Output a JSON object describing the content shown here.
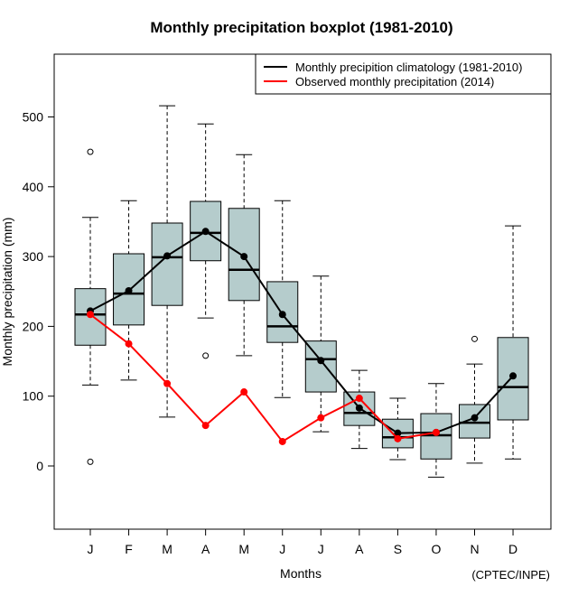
{
  "chart_data": {
    "type": "boxplot",
    "title": "Monthly precipitation boxplot (1981-2010)",
    "xlabel": "Months",
    "ylabel": "Monthly precipitation (mm)",
    "credit": "(CPTEC/INPE)",
    "ylim": [
      -90,
      590
    ],
    "yticks": [
      0,
      100,
      200,
      300,
      400,
      500
    ],
    "ytick_labels": [
      "0",
      "100",
      "200",
      "300",
      "400",
      "500"
    ],
    "categories": [
      "J",
      "F",
      "M",
      "A",
      "M",
      "J",
      "J",
      "A",
      "S",
      "O",
      "N",
      "D"
    ],
    "grid": false,
    "legend_position": "top-right",
    "legend": [
      {
        "label": "Monthly precipition climatology (1981-2010)",
        "color": "#000000"
      },
      {
        "label": "Observed monthly precipitation (2014)",
        "color": "#ff0000"
      }
    ],
    "box_fill": "#b5cccc",
    "boxes": [
      {
        "month": "J",
        "whisker_low": 116,
        "q1": 173,
        "median": 217,
        "q3": 254,
        "whisker_high": 356,
        "outliers": [
          450,
          6
        ]
      },
      {
        "month": "F",
        "whisker_low": 123,
        "q1": 202,
        "median": 247,
        "q3": 304,
        "whisker_high": 380,
        "outliers": []
      },
      {
        "month": "M",
        "whisker_low": 70,
        "q1": 230,
        "median": 299,
        "q3": 348,
        "whisker_high": 516,
        "outliers": []
      },
      {
        "month": "A",
        "whisker_low": 212,
        "q1": 294,
        "median": 334,
        "q3": 379,
        "whisker_high": 490,
        "outliers": [
          158
        ]
      },
      {
        "month": "M",
        "whisker_low": 158,
        "q1": 237,
        "median": 281,
        "q3": 369,
        "whisker_high": 446,
        "outliers": []
      },
      {
        "month": "J",
        "whisker_low": 98,
        "q1": 177,
        "median": 200,
        "q3": 264,
        "whisker_high": 380,
        "outliers": []
      },
      {
        "month": "J",
        "whisker_low": 49,
        "q1": 106,
        "median": 153,
        "q3": 179,
        "whisker_high": 272,
        "outliers": []
      },
      {
        "month": "A",
        "whisker_low": 25,
        "q1": 58,
        "median": 76,
        "q3": 106,
        "whisker_high": 137,
        "outliers": []
      },
      {
        "month": "S",
        "whisker_low": 9,
        "q1": 26,
        "median": 41,
        "q3": 67,
        "whisker_high": 97,
        "outliers": []
      },
      {
        "month": "O",
        "whisker_low": -16,
        "q1": 10,
        "median": 44,
        "q3": 75,
        "whisker_high": 118,
        "outliers": []
      },
      {
        "month": "N",
        "whisker_low": 4,
        "q1": 40,
        "median": 62,
        "q3": 88,
        "whisker_high": 146,
        "outliers": [
          182
        ]
      },
      {
        "month": "D",
        "whisker_low": 10,
        "q1": 66,
        "median": 113,
        "q3": 184,
        "whisker_high": 344,
        "outliers": []
      }
    ],
    "series": [
      {
        "name": "Monthly precipition climatology (1981-2010)",
        "color": "#000000",
        "values": [
          222,
          251,
          301,
          336,
          300,
          217,
          151,
          83,
          47,
          48,
          69,
          129
        ]
      },
      {
        "name": "Observed monthly precipitation (2014)",
        "color": "#ff0000",
        "values": [
          217,
          175,
          118,
          58,
          106,
          35,
          69,
          97,
          39,
          48,
          null,
          null
        ]
      }
    ]
  }
}
